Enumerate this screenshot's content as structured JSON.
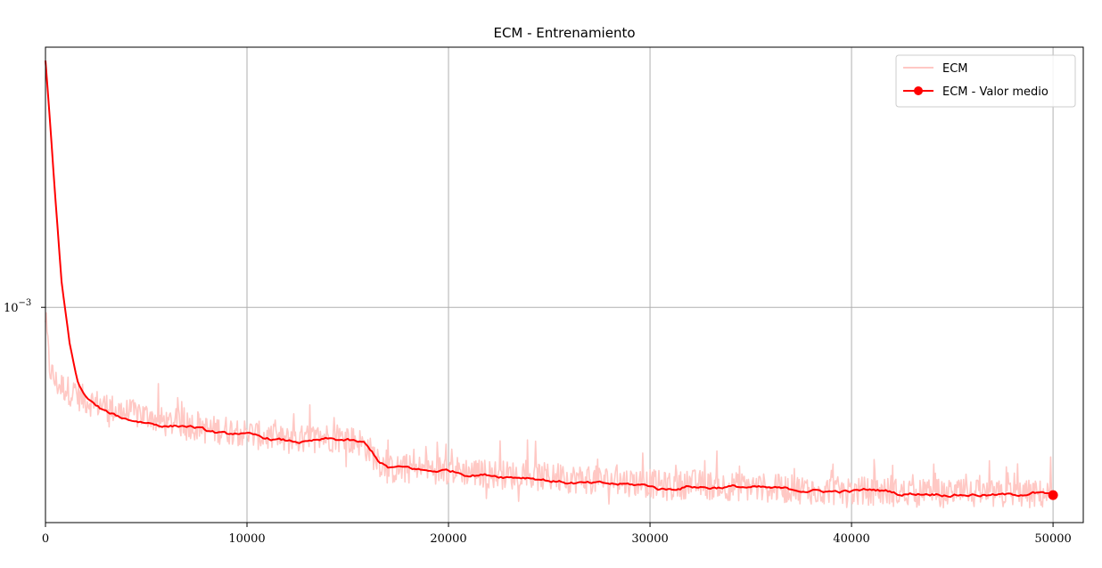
{
  "chart_data": {
    "type": "line",
    "title": "ECM - Entrenamiento",
    "xlabel": "",
    "ylabel": "",
    "xlim": [
      0,
      51500
    ],
    "ylim": [
      0.000305,
      0.0042
    ],
    "yscale": "log",
    "grid": true,
    "legend_position": "top-right",
    "x_ticks": [
      0,
      10000,
      20000,
      30000,
      40000,
      50000
    ],
    "x_tick_labels": [
      "0",
      "10000",
      "20000",
      "30000",
      "40000",
      "50000"
    ],
    "y_ticks": [
      0.001
    ],
    "y_tick_label_base": "10",
    "y_tick_label_exp": "−3",
    "colors": {
      "raw": "#ffc8c4",
      "mean": "#ff0000",
      "grid": "#b0b0b0"
    },
    "series": [
      {
        "name": "ECM",
        "style": "raw",
        "noise": 0.08,
        "x": [
          0,
          200,
          500,
          1000,
          1500,
          2000,
          2500,
          3000,
          4000,
          5000,
          6000,
          7000,
          8000,
          9000,
          10000,
          12000,
          14000,
          15500,
          16000,
          16500,
          17000,
          18000,
          20000,
          22000,
          24000,
          26000,
          28000,
          30000,
          31000,
          32000,
          33000,
          35000,
          37000,
          39000,
          40000,
          41000,
          42000,
          43000,
          44000,
          46000,
          48000,
          49000,
          50000
        ],
        "y": [
          0.00095,
          0.00072,
          0.00066,
          0.00064,
          0.00062,
          0.0006,
          0.00059,
          0.00058,
          0.00056,
          0.00055,
          0.00053,
          0.00053,
          0.00051,
          0.00051,
          0.0005,
          0.00048,
          0.00049,
          0.00048,
          0.00046,
          0.00043,
          0.00041,
          0.00041,
          0.00041,
          0.0004,
          0.000395,
          0.00039,
          0.000385,
          0.00038,
          0.000372,
          0.00038,
          0.000375,
          0.000372,
          0.000368,
          0.000365,
          0.000362,
          0.000365,
          0.000362,
          0.000358,
          0.00036,
          0.000358,
          0.000356,
          0.000358,
          0.000356
        ]
      },
      {
        "name": "ECM - Valor medio",
        "style": "mean",
        "noise": 0.012,
        "x": [
          0,
          200,
          500,
          800,
          1200,
          1600,
          2000,
          2500,
          3000,
          3500,
          4000,
          5000,
          6000,
          7000,
          7500,
          8000,
          9000,
          9500,
          10000,
          11000,
          12000,
          13000,
          14000,
          15000,
          15800,
          16200,
          16600,
          17000,
          18000,
          19000,
          20000,
          21000,
          22000,
          23000,
          24000,
          25000,
          26000,
          27000,
          28000,
          29000,
          30000,
          30500,
          31000,
          32000,
          33000,
          34000,
          35000,
          36000,
          37000,
          38000,
          39000,
          40000,
          41000,
          42000,
          42500,
          43000,
          44000,
          45000,
          46000,
          47000,
          48000,
          49000,
          50000
        ],
        "y": [
          0.0039,
          0.0029,
          0.0018,
          0.00115,
          0.00082,
          0.00066,
          0.00061,
          0.00058,
          0.00056,
          0.00055,
          0.00054,
          0.00053,
          0.00052,
          0.00052,
          0.000515,
          0.000505,
          0.000495,
          0.0005,
          0.000495,
          0.000485,
          0.000478,
          0.000475,
          0.000482,
          0.00048,
          0.000472,
          0.00045,
          0.000425,
          0.000413,
          0.000412,
          0.000405,
          0.000407,
          0.000398,
          0.000397,
          0.000393,
          0.000392,
          0.000385,
          0.00038,
          0.000378,
          0.000377,
          0.000376,
          0.000374,
          0.000367,
          0.000367,
          0.000373,
          0.00037,
          0.000372,
          0.00037,
          0.000368,
          0.000366,
          0.000364,
          0.000362,
          0.000362,
          0.000366,
          0.000362,
          0.000356,
          0.000358,
          0.000358,
          0.000356,
          0.000356,
          0.000355,
          0.000355,
          0.00036,
          0.000355
        ],
        "end_marker": true
      }
    ]
  }
}
